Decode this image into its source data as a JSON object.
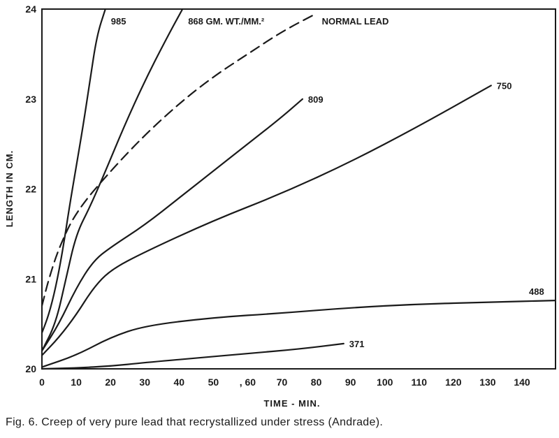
{
  "caption": "Fig. 6. Creep of very pure lead that recrystallized under stress (Andrade).",
  "chart_data": {
    "type": "line",
    "title": "",
    "xlabel": "TIME - MIN.",
    "ylabel": "LENGTH IN CM.",
    "xlim": [
      0,
      150
    ],
    "ylim": [
      20,
      24
    ],
    "x_ticks": [
      0,
      10,
      20,
      30,
      40,
      50,
      60,
      70,
      80,
      90,
      100,
      110,
      120,
      130,
      140
    ],
    "x_tick_labels": [
      "0",
      "10",
      "20",
      "30",
      "40",
      "50",
      ", 60",
      "70",
      "80",
      "90",
      "100",
      "110",
      "120",
      "130",
      "140"
    ],
    "y_ticks": [
      20,
      21,
      22,
      23,
      24
    ],
    "y_tick_labels": [
      "20",
      "21",
      "22",
      "23",
      "24"
    ],
    "grid": false,
    "line_color": "#1a1a1a",
    "series": [
      {
        "name": "985",
        "label_text": "985",
        "dashed": false,
        "points": [
          [
            0,
            20.4
          ],
          [
            2,
            20.6
          ],
          [
            4,
            20.9
          ],
          [
            6,
            21.3
          ],
          [
            8,
            21.8
          ],
          [
            10,
            22.25
          ],
          [
            12,
            22.7
          ],
          [
            14,
            23.2
          ],
          [
            16,
            23.7
          ],
          [
            18.5,
            24.0
          ]
        ]
      },
      {
        "name": "868",
        "label_text": "868 GM. WT./MM.²",
        "dashed": false,
        "points": [
          [
            0,
            20.2
          ],
          [
            4,
            20.5
          ],
          [
            7,
            21.0
          ],
          [
            10,
            21.5
          ],
          [
            14,
            21.8
          ],
          [
            18,
            22.15
          ],
          [
            24,
            22.7
          ],
          [
            30,
            23.2
          ],
          [
            36,
            23.65
          ],
          [
            41,
            24.0
          ]
        ]
      },
      {
        "name": "NORMAL LEAD",
        "label_text": "NORMAL LEAD",
        "dashed": true,
        "points": [
          [
            0,
            20.7
          ],
          [
            2,
            21.0
          ],
          [
            5,
            21.35
          ],
          [
            10,
            21.75
          ],
          [
            20,
            22.2
          ],
          [
            30,
            22.6
          ],
          [
            40,
            22.95
          ],
          [
            50,
            23.25
          ],
          [
            60,
            23.5
          ],
          [
            70,
            23.75
          ],
          [
            80,
            23.95
          ]
        ]
      },
      {
        "name": "809",
        "label_text": "809",
        "dashed": false,
        "points": [
          [
            0,
            20.2
          ],
          [
            5,
            20.5
          ],
          [
            10,
            20.9
          ],
          [
            15,
            21.2
          ],
          [
            20,
            21.35
          ],
          [
            30,
            21.6
          ],
          [
            40,
            21.9
          ],
          [
            50,
            22.2
          ],
          [
            60,
            22.5
          ],
          [
            70,
            22.8
          ],
          [
            76,
            23.0
          ]
        ]
      },
      {
        "name": "750",
        "label_text": "750",
        "dashed": false,
        "points": [
          [
            0,
            20.15
          ],
          [
            5,
            20.35
          ],
          [
            10,
            20.6
          ],
          [
            15,
            20.9
          ],
          [
            20,
            21.1
          ],
          [
            30,
            21.3
          ],
          [
            50,
            21.65
          ],
          [
            70,
            21.95
          ],
          [
            90,
            22.3
          ],
          [
            110,
            22.7
          ],
          [
            131,
            23.15
          ]
        ]
      },
      {
        "name": "488",
        "label_text": "488",
        "dashed": false,
        "points": [
          [
            0,
            20.02
          ],
          [
            10,
            20.15
          ],
          [
            20,
            20.35
          ],
          [
            30,
            20.48
          ],
          [
            50,
            20.57
          ],
          [
            70,
            20.62
          ],
          [
            90,
            20.68
          ],
          [
            110,
            20.72
          ],
          [
            130,
            20.74
          ],
          [
            150,
            20.76
          ]
        ]
      },
      {
        "name": "371",
        "label_text": "371",
        "dashed": false,
        "points": [
          [
            0,
            20.0
          ],
          [
            10,
            20.01
          ],
          [
            20,
            20.03
          ],
          [
            30,
            20.07
          ],
          [
            45,
            20.12
          ],
          [
            60,
            20.17
          ],
          [
            75,
            20.22
          ],
          [
            88,
            20.28
          ]
        ]
      }
    ]
  }
}
